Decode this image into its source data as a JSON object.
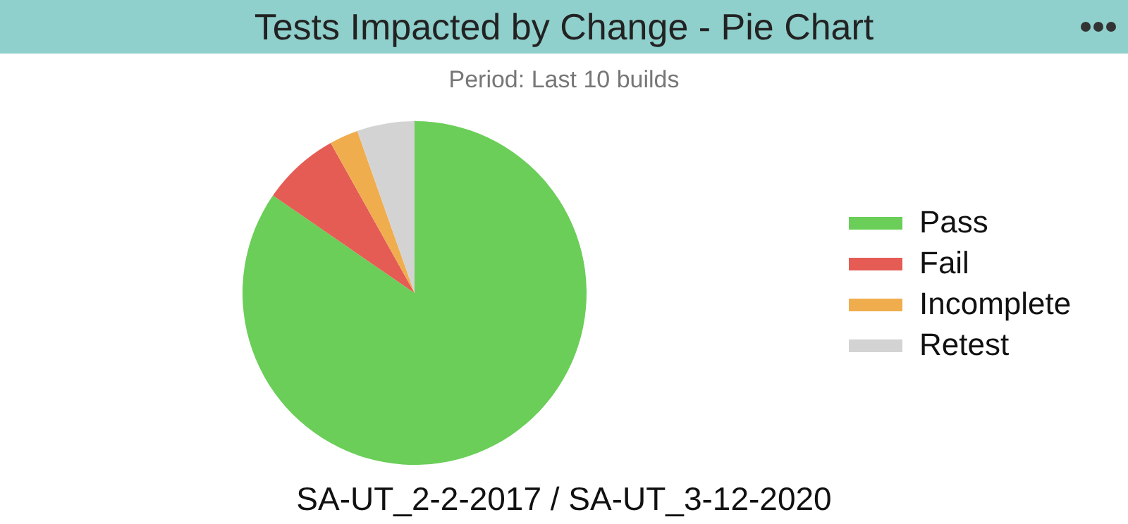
{
  "chart_data": {
    "type": "pie",
    "title": "Tests Impacted by Change - Pie Chart",
    "subtitle": "Period: Last 10 builds",
    "categories": [
      "Pass",
      "Fail",
      "Incomplete",
      "Retest"
    ],
    "values": [
      84.6,
      7.3,
      2.7,
      5.4
    ],
    "colors": [
      "#6ace58",
      "#e45c54",
      "#f0ad4e",
      "#d3d3d3"
    ],
    "legend": "right",
    "annotations": [
      "SA-UT_2-2-2017 / SA-UT_3-12-2020"
    ]
  }
}
